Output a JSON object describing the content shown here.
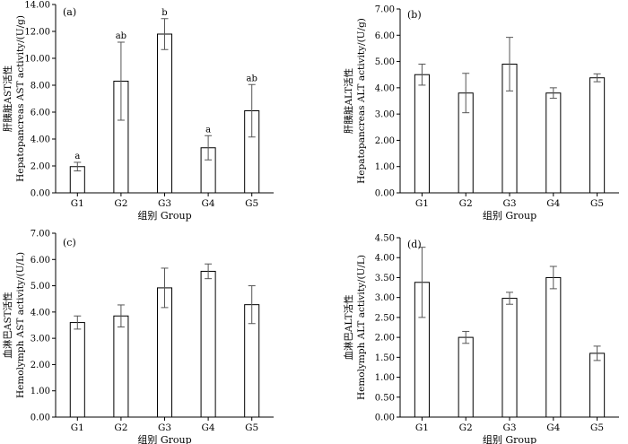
{
  "chart_data": [
    {
      "type": "bar",
      "panel_label": "(a)",
      "categories": [
        "G1",
        "G2",
        "G3",
        "G4",
        "G5"
      ],
      "values": [
        1.95,
        8.3,
        11.8,
        3.35,
        6.1
      ],
      "errors": [
        0.32,
        2.9,
        1.15,
        0.9,
        1.95
      ],
      "significance": [
        "a",
        "ab",
        "b",
        "a",
        "ab"
      ],
      "ylabel_line1": "肝胰脏AST活性",
      "ylabel_line2": "Hepatopancreas AST activity/(U/g)",
      "xlabel": "组别 Group",
      "ylim": [
        0,
        14
      ],
      "yticks": [
        "0.00",
        "2.00",
        "4.00",
        "6.00",
        "8.00",
        "10.00",
        "12.00",
        "14.00"
      ]
    },
    {
      "type": "bar",
      "panel_label": "(b)",
      "categories": [
        "G1",
        "G2",
        "G3",
        "G4",
        "G5"
      ],
      "values": [
        4.5,
        3.8,
        4.9,
        3.8,
        4.38
      ],
      "errors": [
        0.4,
        0.75,
        1.02,
        0.2,
        0.15
      ],
      "significance": [],
      "ylabel_line1": "肝胰脏ALT活性",
      "ylabel_line2": "Hepatopancreas ALT activity/(U/g)",
      "xlabel": "组别 Group",
      "ylim": [
        0,
        7
      ],
      "yticks": [
        "0.00",
        "1.00",
        "2.00",
        "3.00",
        "4.00",
        "5.00",
        "6.00",
        "7.00"
      ]
    },
    {
      "type": "bar",
      "panel_label": "(c)",
      "categories": [
        "G1",
        "G2",
        "G3",
        "G4",
        "G5"
      ],
      "values": [
        3.6,
        3.85,
        4.92,
        5.55,
        4.28
      ],
      "errors": [
        0.25,
        0.42,
        0.75,
        0.28,
        0.72
      ],
      "significance": [],
      "ylabel_line1": "血淋巴AST活性",
      "ylabel_line2": "Hemolymph AST activity/(U/L)",
      "xlabel": "组别 Group",
      "ylim": [
        0,
        7
      ],
      "yticks": [
        "0.00",
        "1.00",
        "2.00",
        "3.00",
        "4.00",
        "5.00",
        "6.00",
        "7.00"
      ]
    },
    {
      "type": "bar",
      "panel_label": "(d)",
      "categories": [
        "G1",
        "G2",
        "G3",
        "G4",
        "G5"
      ],
      "values": [
        3.38,
        2.0,
        2.98,
        3.5,
        1.6
      ],
      "errors": [
        0.88,
        0.15,
        0.15,
        0.28,
        0.18
      ],
      "significance": [],
      "ylabel_line1": "血淋巴ALT活性",
      "ylabel_line2": "Hemolymph ALT activity/(U/L)",
      "xlabel": "组别 Group",
      "ylim": [
        0,
        4.5
      ],
      "yticks": [
        "0.00",
        "0.50",
        "1.00",
        "1.50",
        "2.00",
        "2.50",
        "3.00",
        "3.50",
        "4.00",
        "4.50"
      ]
    }
  ]
}
